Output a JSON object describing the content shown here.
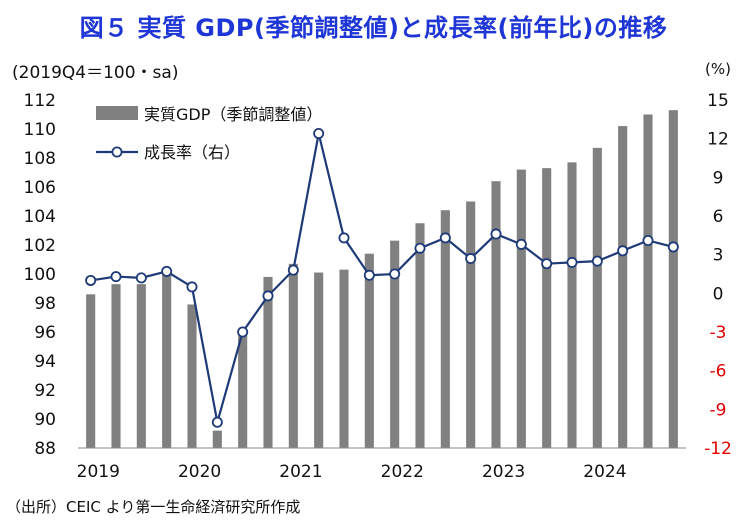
{
  "title": "図５ 実質 GDP(季節調整値)と成長率(前年比)の推移",
  "source": "（出所）CEIC より第一生命経済研究所作成",
  "colors": {
    "title": "#1f36d6",
    "bars": "#808080",
    "line": "#1f3a78",
    "marker_fill": "#ffffff",
    "right_axis_positive": "#111111",
    "right_axis_negative": "#e00000"
  },
  "chart_data": {
    "type": "bar+line",
    "unit_left": "(2019Q4＝100・sa)",
    "unit_right": "(%)",
    "categories": [
      "2019Q1",
      "2019Q2",
      "2019Q3",
      "2019Q4",
      "2020Q1",
      "2020Q2",
      "2020Q3",
      "2020Q4",
      "2021Q1",
      "2021Q2",
      "2021Q3",
      "2021Q4",
      "2022Q1",
      "2022Q2",
      "2022Q3",
      "2022Q4",
      "2023Q1",
      "2023Q2",
      "2023Q3",
      "2023Q4",
      "2024Q1",
      "2024Q2",
      "2024Q3",
      "2024Q4"
    ],
    "x_tick_labels": [
      "2019",
      "2020",
      "2021",
      "2022",
      "2023",
      "2024"
    ],
    "series": [
      {
        "name": "実質GDP（季節調整値）",
        "type": "bar",
        "axis": "left",
        "values": [
          98.6,
          99.3,
          99.3,
          100.0,
          97.9,
          89.2,
          96.0,
          99.8,
          100.7,
          100.1,
          100.3,
          101.4,
          102.3,
          103.5,
          104.4,
          105.0,
          106.4,
          107.2,
          107.3,
          107.7,
          108.7,
          110.2,
          111.0,
          111.3
        ]
      },
      {
        "name": "成長率（右）",
        "type": "line",
        "axis": "right",
        "values": [
          1.0,
          1.3,
          1.2,
          1.7,
          0.5,
          -10.0,
          -3.0,
          -0.2,
          1.8,
          12.4,
          4.3,
          1.4,
          1.5,
          3.5,
          4.3,
          2.7,
          4.6,
          3.8,
          2.3,
          2.4,
          2.5,
          3.3,
          4.1,
          3.6
        ]
      }
    ],
    "left_axis": {
      "min": 88,
      "max": 112,
      "ticks": [
        88,
        90,
        92,
        94,
        96,
        98,
        100,
        102,
        104,
        106,
        108,
        110,
        112
      ]
    },
    "right_axis": {
      "min": -12,
      "max": 15,
      "ticks": [
        -12,
        -9,
        -6,
        -3,
        0,
        3,
        6,
        9,
        12,
        15
      ]
    },
    "legend_position": "top-left",
    "grid": false
  }
}
